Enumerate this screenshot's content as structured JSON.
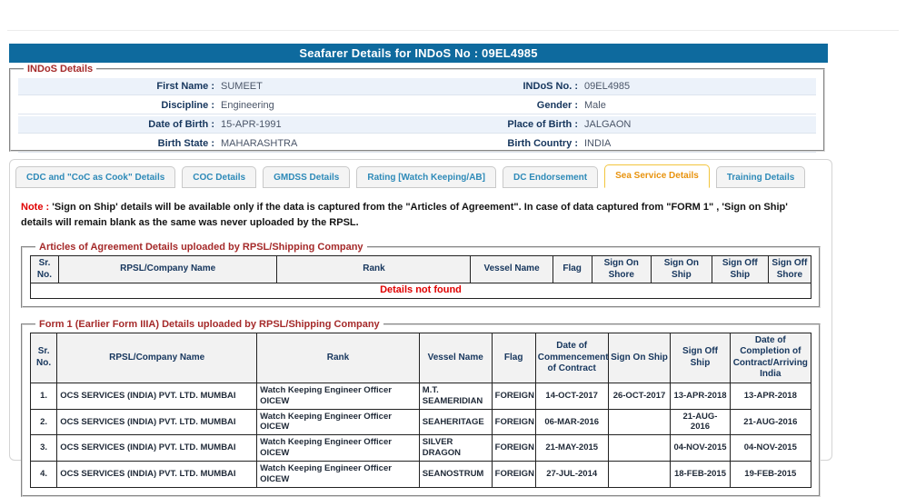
{
  "header": {
    "title": "Seafarer Details for INDoS No : 09EL4985"
  },
  "indos_details": {
    "legend": "INDoS Details",
    "rows": [
      {
        "left_label": "First Name :",
        "left_value": "SUMEET",
        "right_label": "INDoS No. :",
        "right_value": "09EL4985"
      },
      {
        "left_label": "Discipline :",
        "left_value": "Engineering",
        "right_label": "Gender :",
        "right_value": "Male"
      },
      {
        "left_label": "Date of Birth :",
        "left_value": "15-APR-1991",
        "right_label": "Place of Birth :",
        "right_value": "JALGAON"
      },
      {
        "left_label": "Birth State :",
        "left_value": "MAHARASHTRA",
        "right_label": "Birth Country :",
        "right_value": "INDIA"
      }
    ]
  },
  "tabs": [
    {
      "label": "CDC and \"CoC as Cook\" Details",
      "active": false
    },
    {
      "label": "COC Details",
      "active": false
    },
    {
      "label": "GMDSS Details",
      "active": false
    },
    {
      "label": "Rating [Watch Keeping/AB]",
      "active": false
    },
    {
      "label": "DC Endorsement",
      "active": false
    },
    {
      "label": "Sea Service Details",
      "active": true
    },
    {
      "label": "Training Details",
      "active": false
    }
  ],
  "note": {
    "prefix": "Note :",
    "text": "'Sign on Ship' details will be available only if the data is captured from the \"Articles of Agreement\". In case of data captured from \"FORM 1\" , 'Sign on Ship' details will remain blank as the same was never uploaded by the RPSL."
  },
  "articles_table": {
    "legend": "Articles of Agreement Details uploaded by RPSL/Shipping Company",
    "headers": [
      "Sr. No.",
      "RPSL/Company Name",
      "Rank",
      "Vessel Name",
      "Flag",
      "Sign On Shore",
      "Sign On Ship",
      "Sign Off Ship",
      "Sign Off Shore"
    ],
    "rows": [],
    "empty_message": "Details not found"
  },
  "form1_table": {
    "legend": "Form 1 (Earlier Form IIIA) Details uploaded by RPSL/Shipping Company",
    "headers": [
      "Sr. No.",
      "RPSL/Company Name",
      "Rank",
      "Vessel Name",
      "Flag",
      "Date of Commencement of Contract",
      "Sign On Ship",
      "Sign Off Ship",
      "Date of Completion of Contract/Arriving India"
    ],
    "rows": [
      [
        "1.",
        "OCS SERVICES (INDIA) PVT. LTD. MUMBAI",
        "Watch Keeping Engineer Officer OICEW",
        "M.T. SEAMERIDIAN",
        "FOREIGN",
        "14-OCT-2017",
        "26-OCT-2017",
        "13-APR-2018",
        "13-APR-2018"
      ],
      [
        "2.",
        "OCS SERVICES (INDIA) PVT. LTD. MUMBAI",
        "Watch Keeping Engineer Officer OICEW",
        "SEAHERITAGE",
        "FOREIGN",
        "06-MAR-2016",
        "",
        "21-AUG-2016",
        "21-AUG-2016"
      ],
      [
        "3.",
        "OCS SERVICES (INDIA) PVT. LTD. MUMBAI",
        "Watch Keeping Engineer Officer OICEW",
        "SILVER DRAGON",
        "FOREIGN",
        "21-MAY-2015",
        "",
        "04-NOV-2015",
        "04-NOV-2015"
      ],
      [
        "4.",
        "OCS SERVICES (INDIA) PVT. LTD. MUMBAI",
        "Watch Keeping Engineer Officer OICEW",
        "SEANOSTRUM",
        "FOREIGN",
        "27-JUL-2014",
        "",
        "18-FEB-2015",
        "19-FEB-2015"
      ]
    ]
  },
  "colors": {
    "title_bar_bg": "#0e6a9e",
    "title_text": "#ffffff",
    "legend_red": "#a52a2a",
    "label_navy": "#16365d",
    "value_gray": "#4a5568",
    "alt_row_blue": "#ecf2fa",
    "panel_border": "#d4d4d4",
    "tab_blue": "#2e8ab8",
    "tab_orange": "#e8930e",
    "tab_active_border": "#f2c53d",
    "note_red": "#e00000",
    "table_border": "#222222",
    "header_bg": "#f2f2f2",
    "cell_dark": "#1f2937"
  }
}
